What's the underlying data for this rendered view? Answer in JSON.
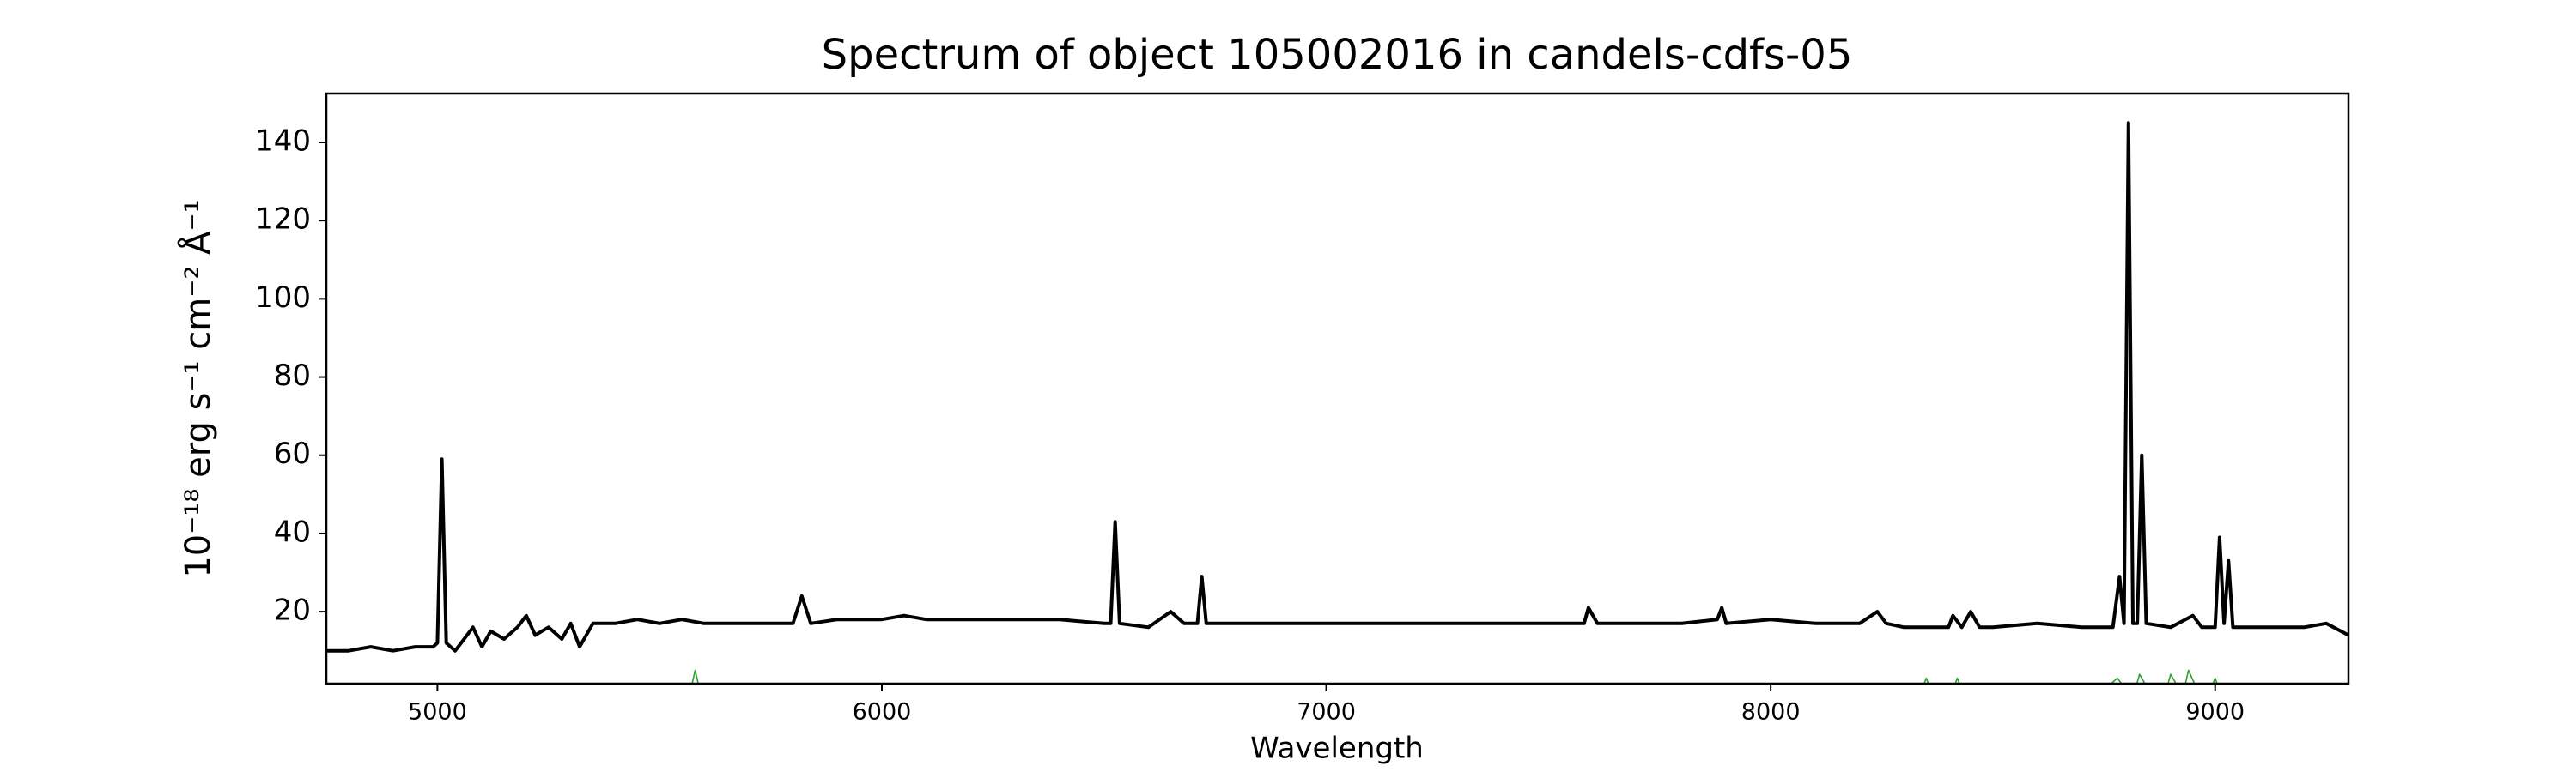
{
  "chart_data": {
    "type": "line",
    "title": "Spectrum of object 105002016 in candels-cdfs-05",
    "x_label": "Wavelength",
    "y_label": "10⁻¹⁸ erg s⁻¹ cm⁻² Å⁻¹",
    "xlim": [
      4750,
      9300
    ],
    "ylim": [
      1.6,
      152.5
    ],
    "xticks": [
      5000,
      6000,
      7000,
      8000,
      9000
    ],
    "yticks": [
      20,
      40,
      60,
      80,
      100,
      120,
      140
    ],
    "series": [
      {
        "color": "#000000",
        "x": [
          4750,
          4800,
          4850,
          4900,
          4950,
          4990,
          5000,
          5010,
          5020,
          5040,
          5060,
          5080,
          5100,
          5120,
          5150,
          5180,
          5200,
          5220,
          5250,
          5280,
          5300,
          5320,
          5350,
          5400,
          5450,
          5500,
          5550,
          5600,
          5700,
          5800,
          5820,
          5840,
          5900,
          6000,
          6050,
          6100,
          6200,
          6300,
          6400,
          6500,
          6515,
          6525,
          6535,
          6600,
          6650,
          6680,
          6710,
          6720,
          6730,
          6800,
          6900,
          7000,
          7100,
          7200,
          7300,
          7400,
          7500,
          7580,
          7590,
          7610,
          7700,
          7800,
          7880,
          7890,
          7900,
          8000,
          8100,
          8200,
          8240,
          8260,
          8300,
          8400,
          8410,
          8430,
          8450,
          8470,
          8500,
          8600,
          8700,
          8770,
          8785,
          8795,
          8805,
          8815,
          8825,
          8835,
          8845,
          8900,
          8950,
          8970,
          9000,
          9010,
          9020,
          9030,
          9040,
          9100,
          9200,
          9250,
          9300
        ],
        "values": [
          10,
          10,
          11,
          10,
          11,
          11,
          12,
          59,
          12,
          10,
          13,
          16,
          11,
          15,
          13,
          16,
          19,
          14,
          16,
          13,
          17,
          11,
          17,
          17,
          18,
          17,
          18,
          17,
          17,
          17,
          24,
          17,
          18,
          18,
          19,
          18,
          18,
          18,
          18,
          17,
          17,
          43,
          17,
          16,
          20,
          17,
          17,
          29,
          17,
          17,
          17,
          17,
          17,
          17,
          17,
          17,
          17,
          17,
          21,
          17,
          17,
          17,
          18,
          21,
          17,
          18,
          17,
          17,
          20,
          17,
          16,
          16,
          19,
          16,
          20,
          16,
          16,
          17,
          16,
          16,
          29,
          17,
          145,
          17,
          17,
          60,
          17,
          16,
          19,
          16,
          16,
          39,
          17,
          33,
          16,
          16,
          16,
          17,
          14
        ]
      },
      {
        "color": "#2ca02c",
        "x": [
          4750,
          5570,
          5580,
          5590,
          7590,
          7600,
          7610,
          8340,
          8350,
          8360,
          8410,
          8420,
          8430,
          8750,
          8780,
          8800,
          8820,
          8830,
          8850,
          8890,
          8900,
          8920,
          8930,
          8940,
          8960,
          8990,
          9000,
          9010,
          9300
        ],
        "values": [
          0,
          0,
          5,
          0,
          0,
          1,
          0,
          0,
          3,
          0,
          0,
          3,
          0,
          0,
          3,
          0,
          0,
          4,
          0,
          0,
          4,
          0,
          0,
          5,
          0,
          0,
          3,
          0,
          0
        ]
      }
    ]
  }
}
